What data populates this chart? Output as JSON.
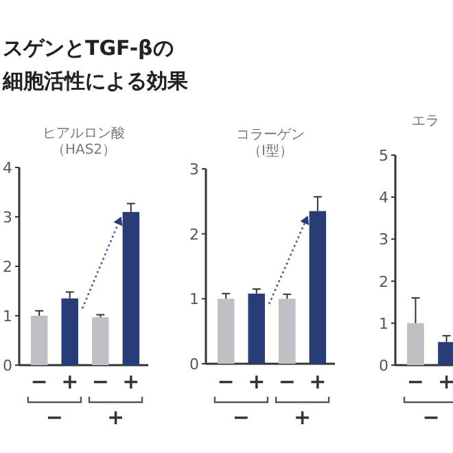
{
  "chart_data": [
    {
      "type": "other",
      "title": "スゲンとTGF-βの",
      "subtitle": "細胞活性による効果"
    },
    {
      "type": "bar",
      "title": "ヒアルロン酸",
      "subtitle": "（HAS2）",
      "categories": [
        "−",
        "+",
        "−",
        "+"
      ],
      "values": [
        1.0,
        1.35,
        0.97,
        3.1
      ],
      "colors": [
        "#bfc0c4",
        "#283c78",
        "#bfc0c4",
        "#283c78"
      ],
      "errors": [
        0.1,
        0.13,
        0.05,
        0.17
      ],
      "ylim": [
        0,
        4
      ],
      "yticks": [
        0,
        1,
        2,
        3,
        4
      ],
      "annotations": [
        "−",
        "+"
      ]
    },
    {
      "type": "bar",
      "title": "コラーゲン",
      "subtitle": "（I型）",
      "categories": [
        "−",
        "+",
        "−",
        "+"
      ],
      "values": [
        1.0,
        1.08,
        1.0,
        2.35
      ],
      "colors": [
        "#bfc0c4",
        "#283c78",
        "#bfc0c4",
        "#283c78"
      ],
      "errors": [
        0.08,
        0.07,
        0.07,
        0.22
      ],
      "ylim": [
        0,
        3
      ],
      "yticks": [
        0,
        1,
        2,
        3
      ],
      "annotations": [
        "−",
        "+"
      ]
    },
    {
      "type": "bar",
      "title": "エラ",
      "categories": [
        "−",
        "+"
      ],
      "values": [
        1.0,
        0.55
      ],
      "colors": [
        "#bfc0c4",
        "#283c78"
      ],
      "errors": [
        0.6,
        0.15
      ],
      "ylim": [
        0,
        5
      ],
      "yticks": [
        0,
        1,
        2,
        3,
        4,
        5
      ],
      "annotations": [
        "−"
      ]
    }
  ]
}
